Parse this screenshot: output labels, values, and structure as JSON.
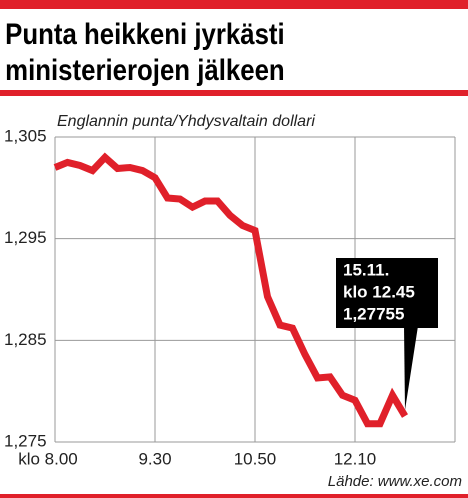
{
  "chart_data": {
    "type": "line",
    "title": [
      "Punta heikkeni jyrkästi",
      "ministerierojen jälkeen"
    ],
    "subtitle": "Englannin punta/Yhdysvaltain dollari",
    "categories": [
      "klo 8.00",
      null,
      null,
      null,
      null,
      null,
      null,
      null,
      "9.30",
      null,
      null,
      null,
      null,
      null,
      null,
      null,
      "10.50",
      null,
      null,
      null,
      null,
      null,
      null,
      null,
      "12.10",
      null,
      null,
      null,
      null
    ],
    "series": [
      {
        "color": "#e0202a",
        "values": [
          1.302,
          1.3025,
          1.3022,
          1.3017,
          1.303,
          1.3019,
          1.302,
          1.3017,
          1.301,
          1.299,
          1.2989,
          1.2981,
          1.2987,
          1.2987,
          1.2973,
          1.2963,
          1.2958,
          1.2893,
          1.2865,
          1.2862,
          1.2836,
          1.2813,
          1.2814,
          1.2796,
          1.2791,
          1.2768,
          1.2768,
          1.2796,
          1.27755
        ]
      }
    ],
    "ylim": [
      1.275,
      1.305
    ],
    "yticks": [
      {
        "value": 1.275,
        "label": "1,275"
      },
      {
        "value": 1.285,
        "label": "1,285"
      },
      {
        "value": 1.295,
        "label": "1,295"
      },
      {
        "value": 1.305,
        "label": "1,305"
      }
    ],
    "grid": true,
    "annotation": [
      "15.11.",
      "klo 12.45",
      "1,27755"
    ],
    "source": "Lähde: www.xe.com"
  }
}
